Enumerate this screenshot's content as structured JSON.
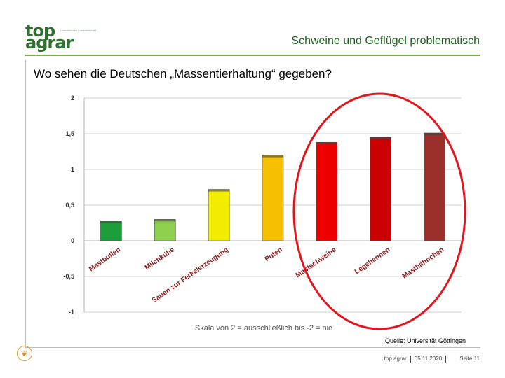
{
  "header": {
    "logo_line1": "top",
    "logo_line2": "agrar",
    "logo_tagline": "Unternehmen Landwirtschaft",
    "title": "Schweine und Geflügel problematisch"
  },
  "question": "Wo sehen die Deutschen „Massentierhaltung“ gegeben?",
  "chart_data": {
    "type": "bar",
    "categories": [
      "Mastbullen",
      "Milchkühe",
      "Sauen zur Ferkelerzeugung",
      "Puten",
      "Mastschweine",
      "Legehennen",
      "Masthähnchen"
    ],
    "values": [
      0.28,
      0.3,
      0.72,
      1.2,
      1.38,
      1.45,
      1.51
    ],
    "colors": [
      "#1e9e3a",
      "#8fd14f",
      "#f2ec00",
      "#f5c000",
      "#ee0000",
      "#cc0000",
      "#9b2f2a"
    ],
    "ylim": [
      -1,
      2
    ],
    "yticks": [
      "2",
      "1,5",
      "1",
      "0,5",
      "0",
      "-0,5",
      "-1"
    ],
    "ytick_values": [
      2,
      1.5,
      1,
      0.5,
      0,
      -0.5,
      -1
    ],
    "xlabel": "Skala von 2 = ausschließlich bis -2 = nie",
    "highlight": "red ellipse around Mastschweine, Legehennen, Masthähnchen",
    "highlight_color": "#e3141c",
    "grid": true
  },
  "source": "Quelle: Universität Göttingen",
  "footer": {
    "brand": "top agrar",
    "date": "05.11.2020",
    "page": "Seite 11"
  }
}
